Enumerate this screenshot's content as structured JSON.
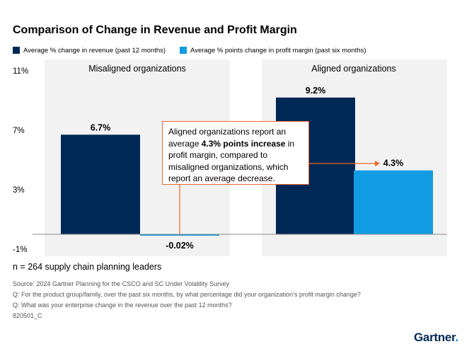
{
  "title": "Comparison of Change in Revenue and Profit Margin",
  "legend": [
    {
      "label": "Average % change in revenue (past 12 months)",
      "color": "#002856"
    },
    {
      "label": "Average % points change in profit margin (past six months)",
      "color": "#129ce3"
    }
  ],
  "annotation": {
    "pre": "Aligned organizations report an average ",
    "bold": "4.3% points increase",
    "post": " in profit margin, compared to misaligned organizations, which report an average decrease."
  },
  "footer": {
    "sample": "n = 264 supply chain planning leaders",
    "source": "Source: 2024 Gartner Planning for the CSCO and SC Under Volatility Survey",
    "q1": "Q: For the product group/family, over the past six months, by what percentage did your organization’s profit margin change?",
    "q2": "Q: What was your enterprise change in the revenue over the past 12 months?",
    "id": "820501_C",
    "brand": "Gartner",
    "brand_dot": "."
  },
  "chart_data": {
    "type": "bar",
    "title": "Comparison of Change in Revenue and Profit Margin",
    "categories": [
      "Misaligned organizations",
      "Aligned organizations"
    ],
    "series": [
      {
        "name": "Average % change in revenue (past 12 months)",
        "values": [
          6.7,
          9.2
        ],
        "labels": [
          "6.7%",
          "9.2%"
        ],
        "color": "#002856"
      },
      {
        "name": "Average % points change in profit margin (past six months)",
        "values": [
          -0.02,
          4.3
        ],
        "labels": [
          "-0.02%",
          "4.3%"
        ],
        "color": "#129ce3"
      }
    ],
    "yticks": [
      11,
      7,
      3,
      -1
    ],
    "ytick_labels": [
      "11%",
      "7%",
      "3%",
      "-1%"
    ],
    "ylim": [
      -1,
      11
    ],
    "xlabel": "",
    "ylabel": "",
    "group_background": "#f2f2f2",
    "accent": "#f0672a"
  }
}
